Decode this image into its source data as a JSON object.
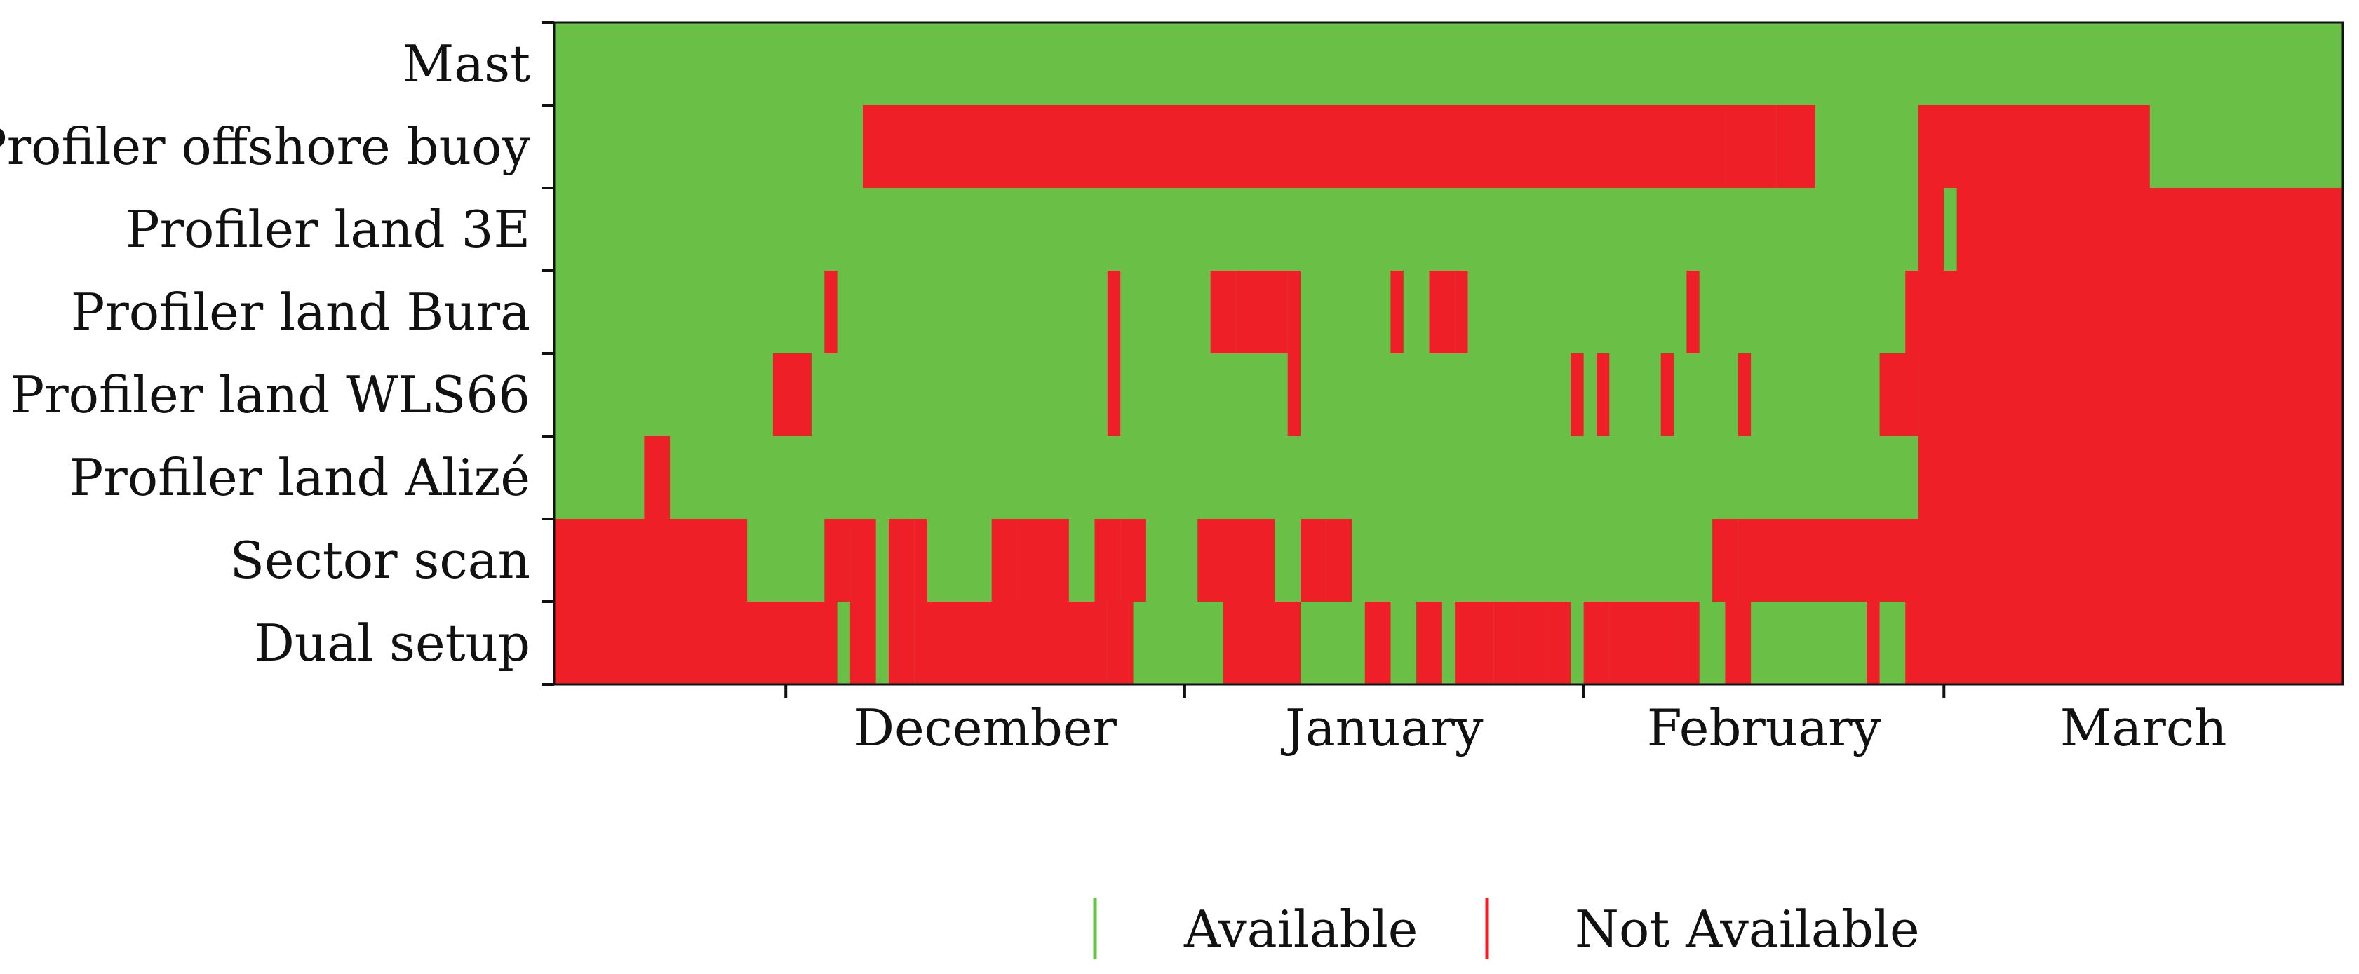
{
  "chart_data": {
    "type": "heatmap",
    "title": "",
    "xlabel": "",
    "ylabel": "",
    "rows": [
      "Mast",
      "Profiler offshore buoy",
      "Profiler land 3E",
      "Profiler land Bura",
      "Profiler land WLS66",
      "Profiler land Alizé",
      "Sector scan",
      "Dual setup"
    ],
    "x_range": [
      "2022-11-13",
      "2023-03-31"
    ],
    "x_ticks": [
      "2022-12-01",
      "2023-01-01",
      "2023-02-01",
      "2023-03-01"
    ],
    "x_tick_labels": [
      "December",
      "January",
      "February",
      "March"
    ],
    "legend": {
      "placement": "bottom",
      "entries": [
        {
          "label": "Available",
          "color": "#6abf46"
        },
        {
          "label": "Not Available",
          "color": "#ee1f27"
        }
      ]
    },
    "colors": {
      "available": "#6abf46",
      "not_available": "#ee1f27"
    },
    "not_available_periods": {
      "Mast": [],
      "Profiler offshore buoy": [
        [
          "2022-12-07",
          "2023-02-11"
        ],
        [
          "2023-02-12",
          "2023-02-15"
        ],
        [
          "2023-02-16",
          "2023-02-18"
        ],
        [
          "2023-02-27",
          "2023-03-16"
        ]
      ],
      "Profiler land 3E": [
        [
          "2023-02-27",
          "2023-02-28"
        ],
        [
          "2023-03-02",
          "2023-03-31"
        ]
      ],
      "Profiler land Bura": [
        [
          "2022-12-04",
          "2022-12-04"
        ],
        [
          "2022-12-26",
          "2022-12-26"
        ],
        [
          "2023-01-03",
          "2023-01-04"
        ],
        [
          "2023-01-05",
          "2023-01-06"
        ],
        [
          "2023-01-06",
          "2023-01-08"
        ],
        [
          "2023-01-09",
          "2023-01-09"
        ],
        [
          "2023-01-17",
          "2023-01-17"
        ],
        [
          "2023-01-20",
          "2023-01-21"
        ],
        [
          "2023-01-22",
          "2023-01-22"
        ],
        [
          "2023-02-09",
          "2023-02-09"
        ],
        [
          "2023-02-26",
          "2023-03-31"
        ]
      ],
      "Profiler land WLS66": [
        [
          "2022-11-30",
          "2022-12-02"
        ],
        [
          "2022-12-26",
          "2022-12-26"
        ],
        [
          "2023-01-09",
          "2023-01-09"
        ],
        [
          "2023-01-31",
          "2023-01-31"
        ],
        [
          "2023-02-02",
          "2023-02-02"
        ],
        [
          "2023-02-07",
          "2023-02-07"
        ],
        [
          "2023-02-13",
          "2023-02-13"
        ],
        [
          "2023-02-24",
          "2023-02-25"
        ],
        [
          "2023-02-25",
          "2023-02-26"
        ],
        [
          "2023-02-27",
          "2023-03-31"
        ]
      ],
      "Profiler land Alizé": [
        [
          "2022-11-20",
          "2022-11-21"
        ],
        [
          "2023-02-27",
          "2023-03-31"
        ]
      ],
      "Sector scan": [
        [
          "2022-11-13",
          "2022-11-26"
        ],
        [
          "2022-11-26",
          "2022-11-27"
        ],
        [
          "2022-12-04",
          "2022-12-05"
        ],
        [
          "2022-12-06",
          "2022-12-07"
        ],
        [
          "2022-12-09",
          "2022-12-10"
        ],
        [
          "2022-12-11",
          "2022-12-11"
        ],
        [
          "2022-12-17",
          "2022-12-18"
        ],
        [
          "2022-12-19",
          "2022-12-22"
        ],
        [
          "2022-12-25",
          "2022-12-26"
        ],
        [
          "2022-12-27",
          "2022-12-28"
        ],
        [
          "2023-01-02",
          "2023-01-03"
        ],
        [
          "2023-01-03",
          "2023-01-07"
        ],
        [
          "2023-01-10",
          "2023-01-11"
        ],
        [
          "2023-01-12",
          "2023-01-13"
        ],
        [
          "2023-02-11",
          "2023-02-12"
        ],
        [
          "2023-02-13",
          "2023-02-14"
        ],
        [
          "2023-02-15",
          "2023-03-31"
        ]
      ],
      "Dual setup": [
        [
          "2022-11-13",
          "2022-12-04"
        ],
        [
          "2022-12-06",
          "2022-12-07"
        ],
        [
          "2022-12-09",
          "2022-12-10"
        ],
        [
          "2022-12-11",
          "2022-12-24"
        ],
        [
          "2022-12-24",
          "2022-12-25"
        ],
        [
          "2022-12-26",
          "2022-12-27"
        ],
        [
          "2023-01-04",
          "2023-01-08"
        ],
        [
          "2023-01-08",
          "2023-01-09"
        ],
        [
          "2023-01-15",
          "2023-01-16"
        ],
        [
          "2023-01-19",
          "2023-01-20"
        ],
        [
          "2023-01-22",
          "2023-01-24"
        ],
        [
          "2023-01-25",
          "2023-01-26"
        ],
        [
          "2023-01-27",
          "2023-01-28"
        ],
        [
          "2023-01-29",
          "2023-01-30"
        ],
        [
          "2023-02-01",
          "2023-02-02"
        ],
        [
          "2023-02-03",
          "2023-02-04"
        ],
        [
          "2023-02-04",
          "2023-02-05"
        ],
        [
          "2023-02-05",
          "2023-02-06"
        ],
        [
          "2023-02-06",
          "2023-02-07"
        ],
        [
          "2023-02-08",
          "2023-02-09"
        ],
        [
          "2023-02-12",
          "2023-02-13"
        ],
        [
          "2023-02-23",
          "2023-02-23"
        ],
        [
          "2023-02-26",
          "2023-03-31"
        ]
      ]
    }
  }
}
